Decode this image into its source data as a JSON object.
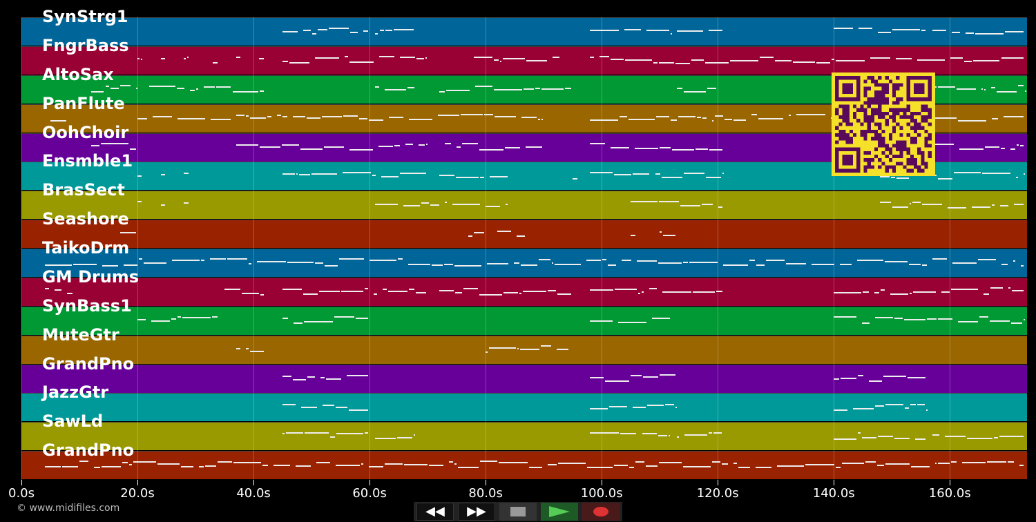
{
  "tracks": [
    {
      "name": "SynStrg1",
      "color": "#006699",
      "notes": [
        [
          45,
          53
        ],
        [
          53,
          60
        ],
        [
          61,
          68
        ],
        [
          98,
          112
        ],
        [
          113,
          121
        ],
        [
          140,
          156
        ],
        [
          157,
          173
        ]
      ]
    },
    {
      "name": "FngrBass",
      "color": "#990033",
      "notes": [
        [
          20,
          21
        ],
        [
          24,
          25
        ],
        [
          28,
          29
        ],
        [
          33,
          34
        ],
        [
          37,
          38
        ],
        [
          41,
          42
        ],
        [
          45,
          70
        ],
        [
          78,
          93
        ],
        [
          98,
          173
        ]
      ]
    },
    {
      "name": "AltoSax",
      "color": "#009933",
      "notes": [
        [
          12,
          20
        ],
        [
          22,
          42
        ],
        [
          61,
          68
        ],
        [
          72,
          95
        ],
        [
          113,
          120
        ],
        [
          140,
          173
        ]
      ]
    },
    {
      "name": "PanFlute",
      "color": "#996600",
      "notes": [
        [
          5,
          8
        ],
        [
          20,
          45
        ],
        [
          45,
          90
        ],
        [
          98,
          173
        ]
      ]
    },
    {
      "name": "OohChoir",
      "color": "#660099",
      "notes": [
        [
          12,
          20
        ],
        [
          37,
          70
        ],
        [
          73,
          90
        ],
        [
          98,
          121
        ],
        [
          140,
          173
        ]
      ]
    },
    {
      "name": "Ensmble1",
      "color": "#009999",
      "notes": [
        [
          20,
          21
        ],
        [
          24,
          25
        ],
        [
          28,
          29
        ],
        [
          45,
          70
        ],
        [
          72,
          84
        ],
        [
          95,
          96
        ],
        [
          98,
          121
        ],
        [
          148,
          173
        ]
      ]
    },
    {
      "name": "BrasSect",
      "color": "#999900",
      "notes": [
        [
          20,
          21
        ],
        [
          24,
          25
        ],
        [
          28,
          29
        ],
        [
          61,
          84
        ],
        [
          105,
          121
        ],
        [
          148,
          173
        ]
      ]
    },
    {
      "name": "Seashore",
      "color": "#992200",
      "notes": [
        [
          17,
          20
        ],
        [
          77,
          80
        ],
        [
          82,
          87
        ],
        [
          105,
          106
        ],
        [
          110,
          113
        ]
      ]
    },
    {
      "name": "TaikoDrm",
      "color": "#006699",
      "notes": [
        [
          4,
          173
        ]
      ]
    },
    {
      "name": "GM Drums",
      "color": "#990033",
      "notes": [
        [
          4,
          9
        ],
        [
          35,
          42
        ],
        [
          45,
          70
        ],
        [
          72,
          95
        ],
        [
          98,
          121
        ],
        [
          140,
          173
        ]
      ]
    },
    {
      "name": "SynBass1",
      "color": "#009933",
      "notes": [
        [
          20,
          34
        ],
        [
          45,
          60
        ],
        [
          98,
          112
        ],
        [
          140,
          173
        ]
      ]
    },
    {
      "name": "MuteGtr",
      "color": "#996600",
      "notes": [
        [
          37,
          42
        ],
        [
          80,
          95
        ]
      ]
    },
    {
      "name": "GrandPno",
      "color": "#660099",
      "notes": [
        [
          45,
          60
        ],
        [
          98,
          113
        ],
        [
          140,
          156
        ]
      ]
    },
    {
      "name": "JazzGtr",
      "color": "#009999",
      "notes": [
        [
          45,
          60
        ],
        [
          98,
          113
        ],
        [
          140,
          156
        ]
      ]
    },
    {
      "name": "SawLd",
      "color": "#999900",
      "notes": [
        [
          45,
          60
        ],
        [
          61,
          68
        ],
        [
          98,
          112
        ],
        [
          113,
          121
        ],
        [
          140,
          156
        ],
        [
          157,
          173
        ]
      ]
    },
    {
      "name": "GrandPno",
      "color": "#992200",
      "notes": [
        [
          4,
          173
        ]
      ]
    }
  ],
  "timeline": {
    "max_seconds": 173.3,
    "ticks": [
      "0.0s",
      "20.0s",
      "40.0s",
      "60.0s",
      "80.0s",
      "100.0s",
      "120.0s",
      "140.0s",
      "160.0s"
    ],
    "tick_values": [
      0,
      20,
      40,
      60,
      80,
      100,
      120,
      140,
      160
    ]
  },
  "credit": "© www.midifiles.com",
  "controls": {
    "rewind": "rewind-icon",
    "fast_forward": "fast-forward-icon",
    "stop": "stop-icon",
    "play": "play-icon",
    "record": "record-icon"
  },
  "qr_colors": {
    "fg": "#5a0a5a",
    "bg": "#f5e02a"
  }
}
